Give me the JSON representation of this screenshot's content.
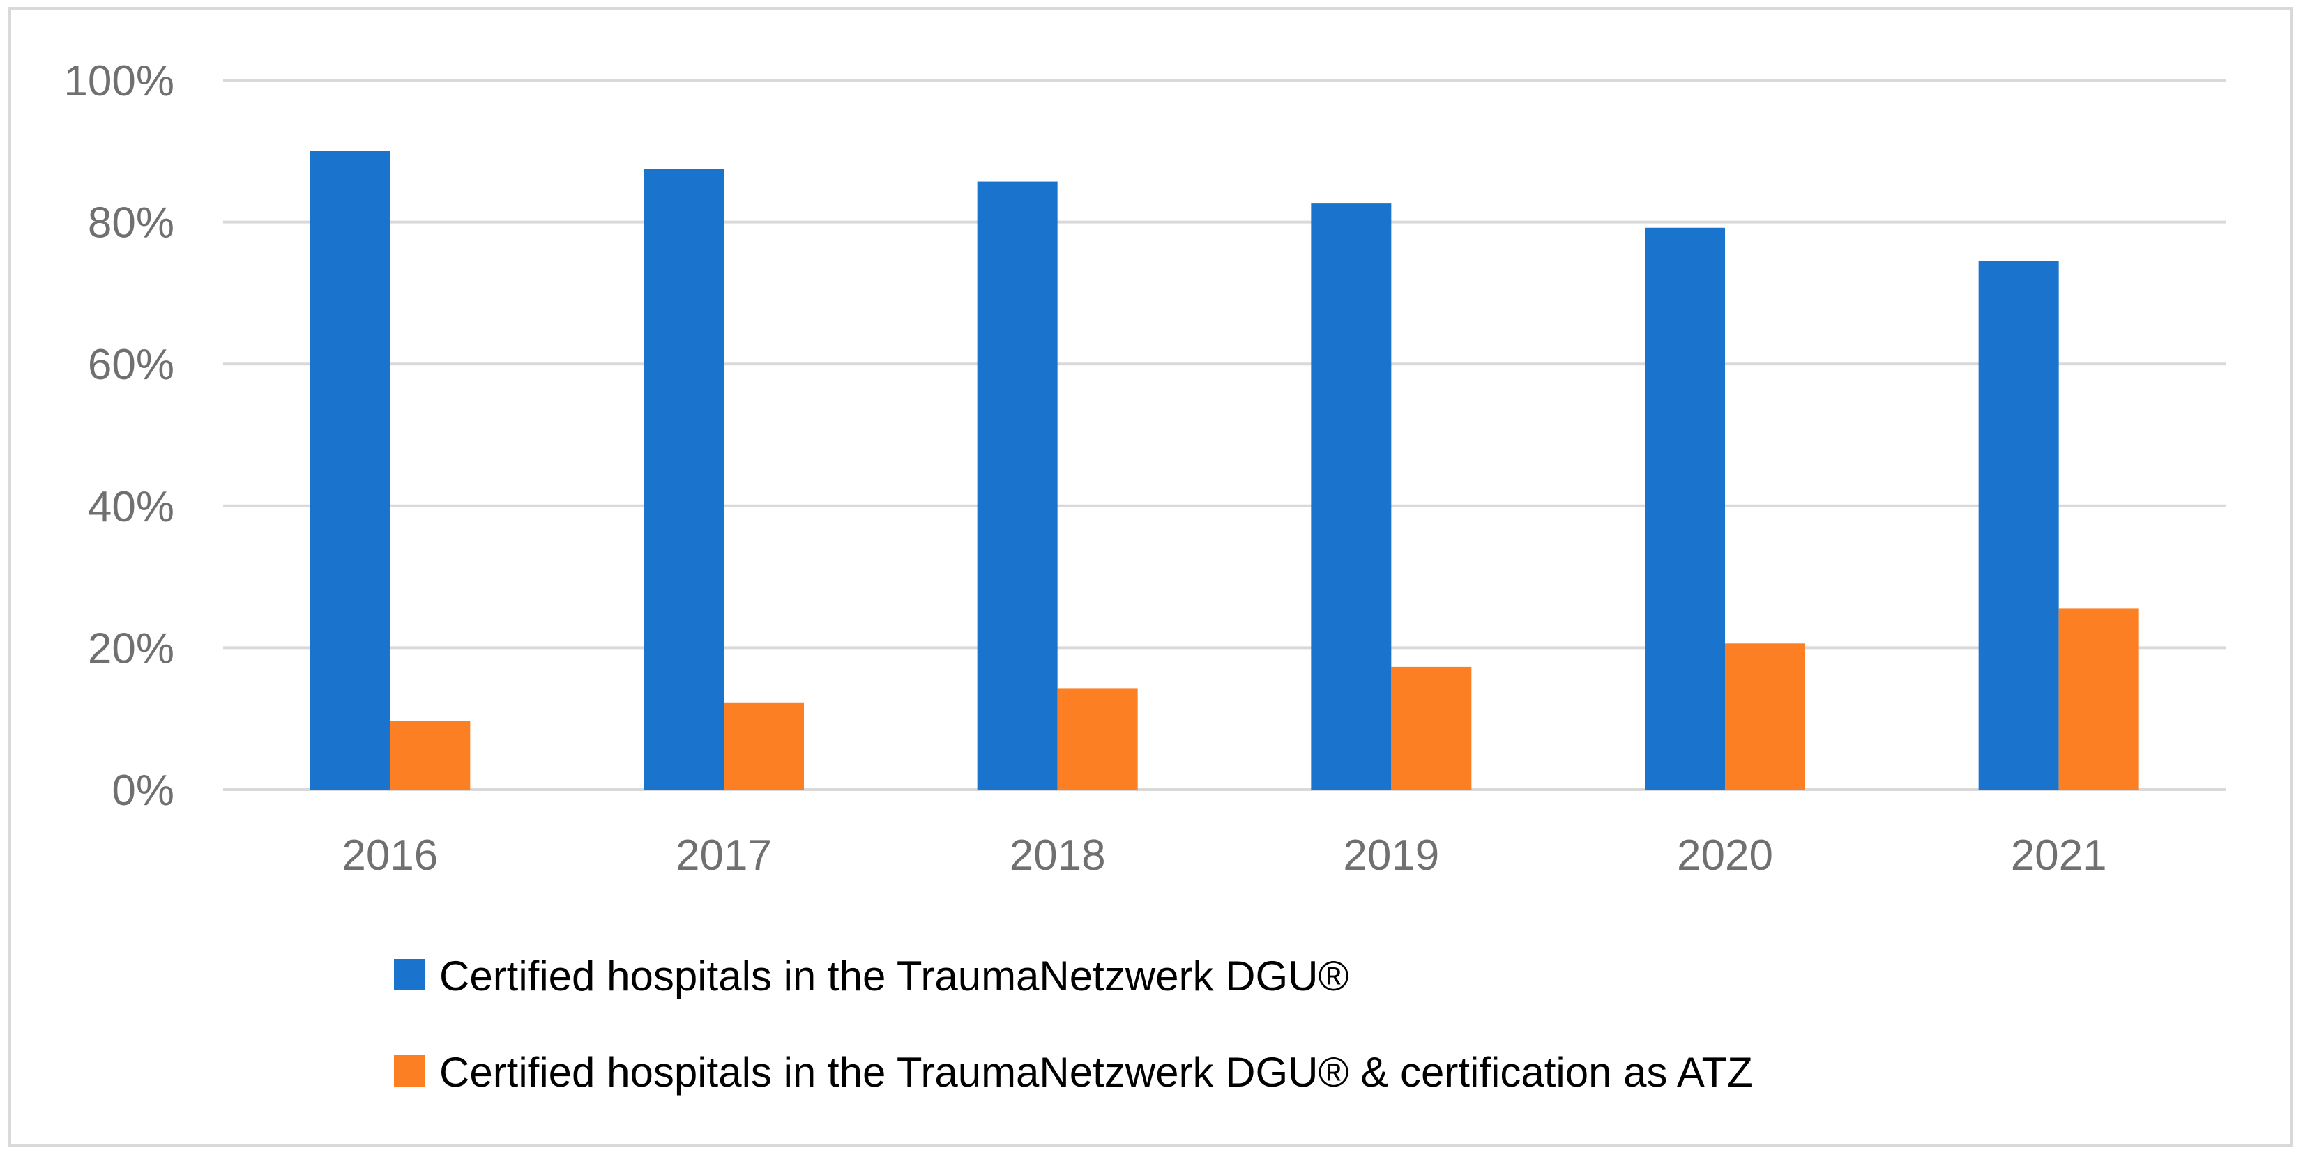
{
  "chart_data": {
    "type": "bar",
    "categories": [
      "2016",
      "2017",
      "2018",
      "2019",
      "2020",
      "2021"
    ],
    "series": [
      {
        "name": "Certified hospitals in the TraumaNetzwerk DGU®",
        "values": [
          90,
          87.5,
          85.7,
          82.7,
          79.2,
          74.5
        ],
        "color": "#1a73cc"
      },
      {
        "name": "Certified hospitals in the TraumaNetzwerk DGU® & certification as ATZ",
        "values": [
          9.7,
          12.3,
          14.3,
          17.3,
          20.6,
          25.5
        ],
        "color": "#fd7f23"
      }
    ],
    "ylim": [
      0,
      100
    ],
    "yticks": [
      0,
      20,
      40,
      60,
      80,
      100
    ],
    "ytick_labels": [
      "0%",
      "20%",
      "40%",
      "60%",
      "80%",
      "100%"
    ],
    "grid": true,
    "legend_position": "bottom",
    "title": "",
    "xlabel": "",
    "ylabel": ""
  }
}
